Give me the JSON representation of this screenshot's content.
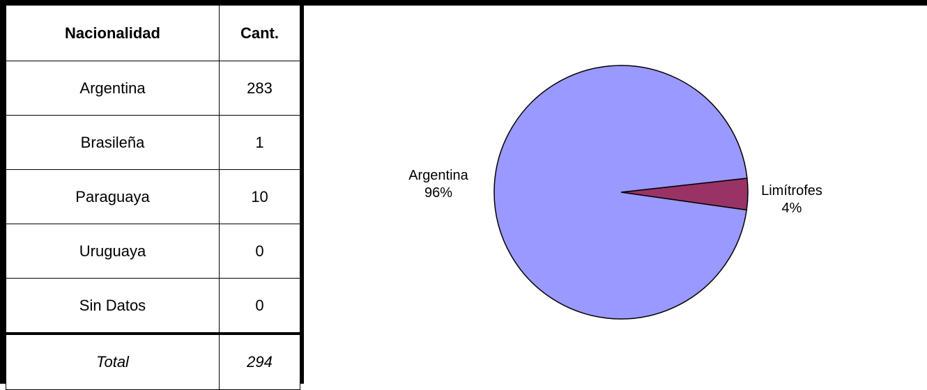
{
  "table": {
    "headers": [
      "Nacionalidad",
      "Cant."
    ],
    "rows": [
      {
        "label": "Argentina",
        "value": "283"
      },
      {
        "label": "Brasileña",
        "value": "1"
      },
      {
        "label": "Paraguaya",
        "value": "10"
      },
      {
        "label": "Uruguaya",
        "value": "0"
      },
      {
        "label": "Sin Datos",
        "value": "0"
      }
    ],
    "total": {
      "label": "Total",
      "value": "294"
    }
  },
  "chart_data": {
    "type": "pie",
    "title": "",
    "labels": [
      "Limítrofes",
      "Argentina"
    ],
    "values": [
      4,
      96
    ],
    "percent_labels": [
      "4%",
      "96%"
    ],
    "colors": [
      "#993366",
      "#9999ff"
    ],
    "legend": "none"
  }
}
